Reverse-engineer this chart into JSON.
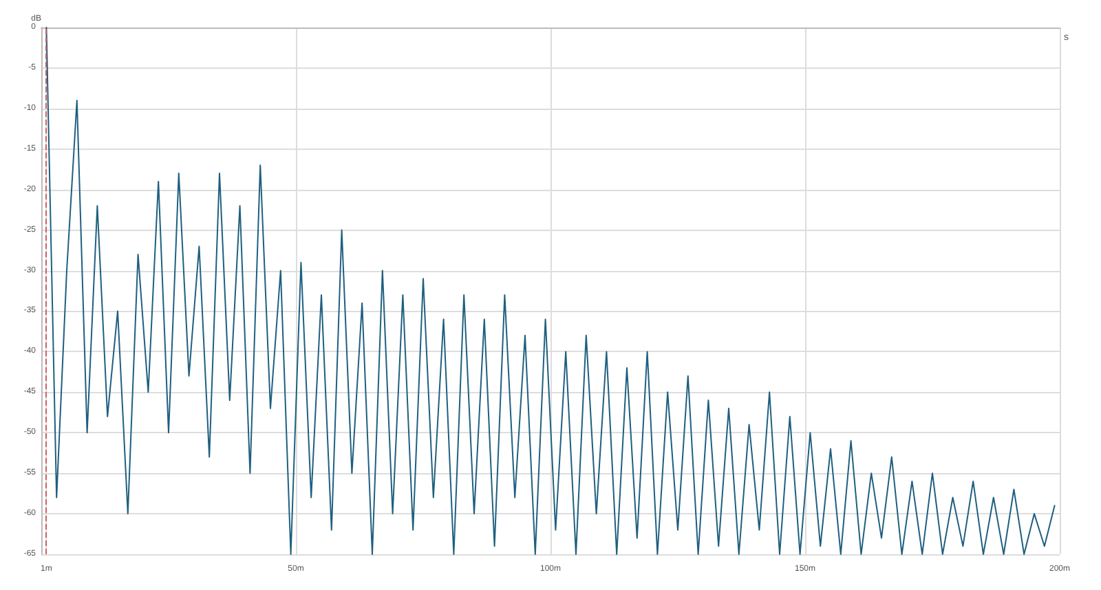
{
  "chart_data": {
    "type": "line",
    "xlabel": "s",
    "ylabel": "dB",
    "grid": true,
    "marker": "none",
    "line_style": "solid",
    "xlim": [
      0,
      200
    ],
    "ylim": [
      -65,
      0
    ],
    "xticks": [
      {
        "value": 1,
        "label": "1m"
      },
      {
        "value": 50,
        "label": "50m"
      },
      {
        "value": 100,
        "label": "100m"
      },
      {
        "value": 150,
        "label": "150m"
      },
      {
        "value": 200,
        "label": "200m"
      }
    ],
    "yticks": [
      0,
      -5,
      -10,
      -15,
      -20,
      -25,
      -30,
      -35,
      -40,
      -45,
      -50,
      -55,
      -60,
      -65
    ],
    "ref_lines": [
      {
        "axis": "x",
        "value": 1,
        "color": "#d06060",
        "line_style": "dashed"
      }
    ],
    "series": [
      {
        "color": "#1f5f80",
        "x": [
          1,
          3,
          5,
          7,
          9,
          11,
          13,
          15,
          17,
          19,
          21,
          23,
          25,
          27,
          29,
          31,
          33,
          35,
          37,
          39,
          41,
          43,
          45,
          47,
          49,
          51,
          53,
          55,
          57,
          59,
          61,
          63,
          65,
          67,
          69,
          71,
          73,
          75,
          77,
          79,
          81,
          83,
          85,
          87,
          89,
          91,
          93,
          95,
          97,
          99,
          101,
          103,
          105,
          107,
          109,
          111,
          113,
          115,
          117,
          119,
          121,
          123,
          125,
          127,
          129,
          131,
          133,
          135,
          137,
          139,
          141,
          143,
          145,
          147,
          149,
          151,
          153,
          155,
          157,
          159,
          161,
          163,
          165,
          167,
          169,
          171,
          173,
          175,
          177,
          179,
          181,
          183,
          185,
          187,
          189,
          191,
          193,
          195,
          197,
          199
        ],
        "values": [
          0,
          -58,
          -30,
          -9,
          -50,
          -22,
          -48,
          -35,
          -60,
          -28,
          -45,
          -19,
          -50,
          -18,
          -43,
          -27,
          -53,
          -18,
          -46,
          -22,
          -55,
          -17,
          -47,
          -30,
          -65,
          -29,
          -58,
          -33,
          -62,
          -25,
          -55,
          -34,
          -65,
          -30,
          -60,
          -33,
          -62,
          -31,
          -58,
          -36,
          -65,
          -33,
          -60,
          -36,
          -64,
          -33,
          -58,
          -38,
          -65,
          -36,
          -62,
          -40,
          -65,
          -38,
          -60,
          -40,
          -65,
          -42,
          -63,
          -40,
          -65,
          -45,
          -62,
          -43,
          -65,
          -46,
          -64,
          -47,
          -65,
          -49,
          -62,
          -45,
          -65,
          -48,
          -65,
          -50,
          -64,
          -52,
          -65,
          -51,
          -65,
          -55,
          -63,
          -53,
          -65,
          -56,
          -65,
          -55,
          -65,
          -58,
          -64,
          -56,
          -65,
          -58,
          -65,
          -57,
          -65,
          -60,
          -64,
          -59
        ]
      }
    ]
  }
}
